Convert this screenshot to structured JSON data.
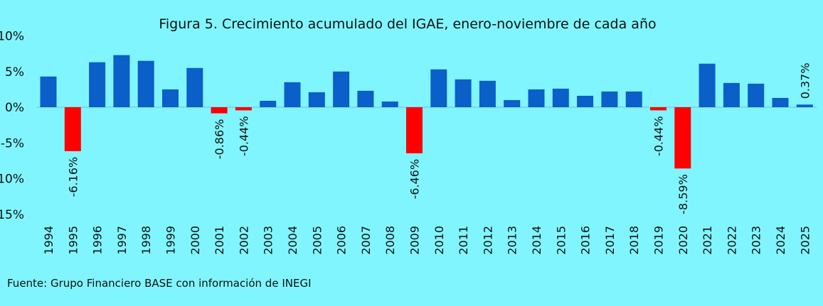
{
  "chart_data": {
    "type": "bar",
    "title": "Figura 5. Crecimiento acumulado del IGAE, enero-noviembre de cada año",
    "source": "Fuente: Grupo Financiero BASE con información de INEGI",
    "xlabel": "",
    "ylabel": "",
    "ylim": [
      -15,
      10
    ],
    "yticks": [
      "10%",
      "5%",
      "0%",
      "-5%",
      "-10%",
      "-15%"
    ],
    "ytick_values": [
      10,
      5,
      0,
      -5,
      -10,
      -15
    ],
    "grid": false,
    "colors": {
      "positive": "#0b5fc8",
      "negative": "#ff0000",
      "background": "#80f5fd"
    },
    "categories": [
      "1994",
      "1995",
      "1996",
      "1997",
      "1998",
      "1999",
      "2000",
      "2001",
      "2002",
      "2003",
      "2004",
      "2005",
      "2006",
      "2007",
      "2008",
      "2009",
      "2010",
      "2011",
      "2012",
      "2013",
      "2014",
      "2015",
      "2016",
      "2017",
      "2018",
      "2019",
      "2020",
      "2021",
      "2022",
      "2023",
      "2024",
      "2025"
    ],
    "values": [
      4.3,
      -6.16,
      6.3,
      7.3,
      6.5,
      2.5,
      5.5,
      -0.86,
      -0.44,
      0.9,
      3.5,
      2.1,
      5.0,
      2.3,
      0.8,
      -6.46,
      5.3,
      3.9,
      3.7,
      1.0,
      2.5,
      2.6,
      1.6,
      2.2,
      2.2,
      -0.44,
      -8.59,
      6.1,
      3.4,
      3.3,
      1.3,
      0.37
    ],
    "data_labels": {
      "1995": "-6.16%",
      "2001": "-0.86%",
      "2002": "-0.44%",
      "2009": "-6.46%",
      "2019": "-0.44%",
      "2020": "-8.59%",
      "2025": "0.37%"
    }
  }
}
